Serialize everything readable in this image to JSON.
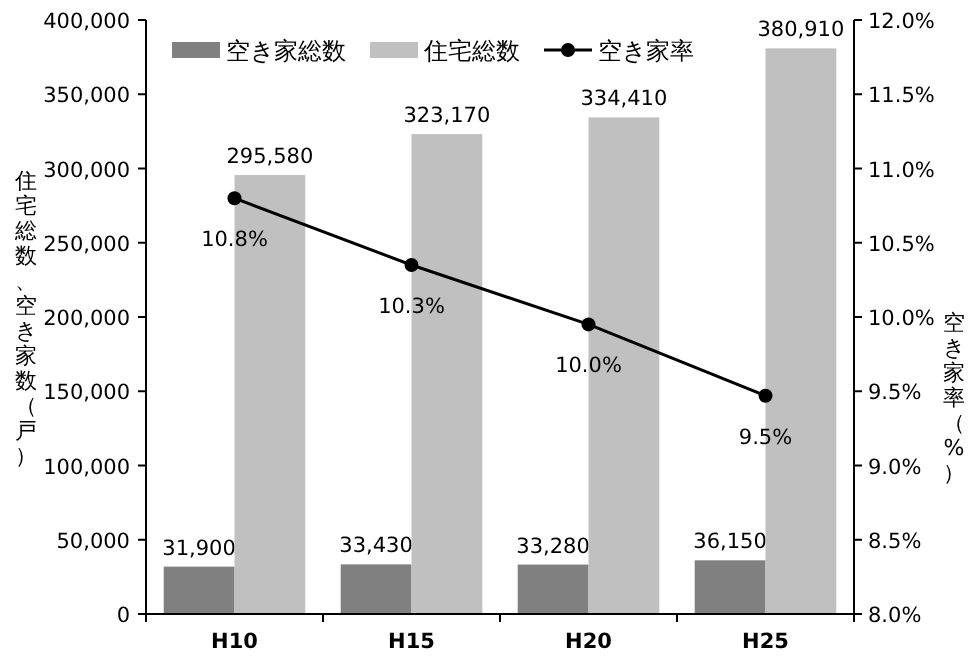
{
  "chart_data": {
    "type": "bar",
    "categories": [
      "H10",
      "H15",
      "H20",
      "H25"
    ],
    "series": [
      {
        "name": "空き家総数",
        "color": "#808080",
        "values": [
          31900,
          33430,
          33280,
          36150
        ],
        "value_labels": [
          "31,900",
          "33,430",
          "33,280",
          "36,150"
        ]
      },
      {
        "name": "住宅総数",
        "color": "#c0c0c0",
        "values": [
          295580,
          323170,
          334410,
          380910
        ],
        "value_labels": [
          "295,580",
          "323,170",
          "334,410",
          "380,910"
        ]
      },
      {
        "name": "空き家率",
        "type": "line",
        "axis": "y2",
        "color": "#000000",
        "marker": "circle",
        "values": [
          10.8,
          10.35,
          9.95,
          9.47
        ],
        "value_labels": [
          "10.8%",
          "10.3%",
          "10.0%",
          "9.5%"
        ]
      }
    ],
    "ylabel": "住宅総数、空き家数（戸）",
    "y2label": "空き家率（%）",
    "ylim": [
      0,
      400000
    ],
    "yticks": [
      {
        "value": 0,
        "label": "0"
      },
      {
        "value": 50000,
        "label": "50,000"
      },
      {
        "value": 100000,
        "label": "100,000"
      },
      {
        "value": 150000,
        "label": "150,000"
      },
      {
        "value": 200000,
        "label": "200,000"
      },
      {
        "value": 250000,
        "label": "250,000"
      },
      {
        "value": 300000,
        "label": "300,000"
      },
      {
        "value": 350000,
        "label": "350,000"
      },
      {
        "value": 400000,
        "label": "400,000"
      }
    ],
    "y2lim": [
      8,
      12
    ],
    "y2ticks": [
      {
        "value": 8,
        "label": "8.0%"
      },
      {
        "value": 8.5,
        "label": "8.5%"
      },
      {
        "value": 9,
        "label": "9.0%"
      },
      {
        "value": 9.5,
        "label": "9.5%"
      },
      {
        "value": 10,
        "label": "10.0%"
      },
      {
        "value": 10.5,
        "label": "10.5%"
      },
      {
        "value": 11,
        "label": "11.0%"
      },
      {
        "value": 11.5,
        "label": "11.5%"
      },
      {
        "value": 12,
        "label": "12.0%"
      }
    ],
    "legend": "top",
    "grid": false
  }
}
